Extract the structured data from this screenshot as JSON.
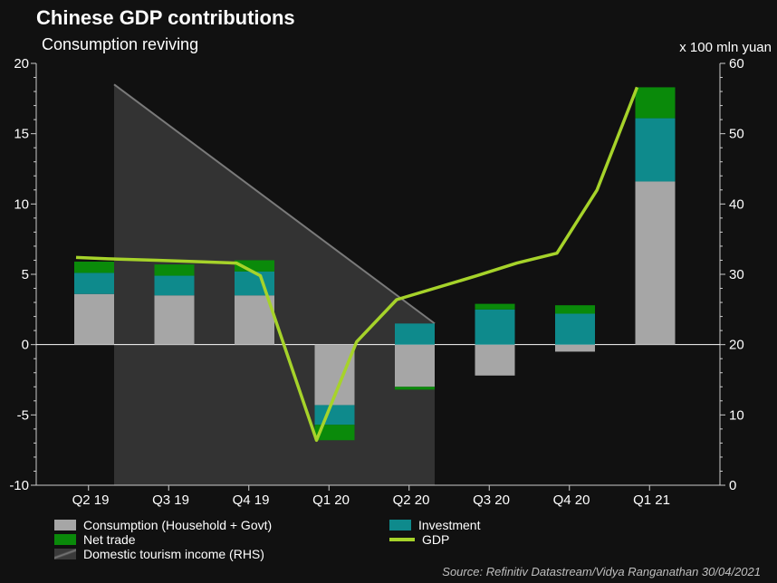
{
  "title": "Chinese GDP contributions",
  "subtitle": "Consumption reviving",
  "rhs_unit": "x 100 mln yuan",
  "source": "Source: Refinitiv Datastream/Vidya Ranganathan 30/04/2021",
  "colors": {
    "consumption": "#a6a6a6",
    "investment": "#0e8a8c",
    "net_trade": "#0a8a0a",
    "gdp": "#a6d32a",
    "tourism": "#3a3a3a",
    "tourism_line": "#7a7a7a"
  },
  "legend": [
    {
      "key": "consumption",
      "label": "Consumption (Household + Govt)"
    },
    {
      "key": "investment",
      "label": "Investment"
    },
    {
      "key": "net_trade",
      "label": "Net trade"
    },
    {
      "key": "gdp",
      "label": "GDP"
    },
    {
      "key": "tourism",
      "label": "Domestic tourism income (RHS)"
    }
  ],
  "chart_data": {
    "type": "bar",
    "categories": [
      "Q2 19",
      "Q3 19",
      "Q4 19",
      "Q1 20",
      "Q2 20",
      "Q3 20",
      "Q4 20",
      "Q1 21"
    ],
    "left_axis": {
      "min": -10,
      "max": 20,
      "ticks": [
        -10,
        -5,
        0,
        5,
        10,
        15,
        20
      ]
    },
    "right_axis": {
      "min": 0,
      "max": 60,
      "ticks": [
        0,
        10,
        20,
        30,
        40,
        50,
        60
      ]
    },
    "series": [
      {
        "name": "Consumption (Household + Govt)",
        "key": "consumption",
        "values": [
          3.6,
          3.5,
          3.5,
          -4.3,
          -3.0,
          -2.2,
          -0.5,
          11.6
        ]
      },
      {
        "name": "Investment",
        "key": "investment",
        "values": [
          1.5,
          1.4,
          1.7,
          -1.4,
          1.5,
          2.5,
          2.2,
          4.5
        ]
      },
      {
        "name": "Net trade",
        "key": "net_trade",
        "values": [
          0.8,
          0.8,
          0.8,
          -1.1,
          -0.2,
          0.4,
          0.6,
          2.2
        ]
      },
      {
        "name": "GDP",
        "key": "gdp",
        "type": "line",
        "x": [
          0.0,
          0.4,
          1.0,
          1.5,
          2.0,
          2.3,
          3.0,
          3.5,
          4.0,
          5.0,
          5.5,
          6.0,
          6.5,
          7.0
        ],
        "values": [
          6.2,
          6.1,
          6.0,
          5.9,
          5.8,
          4.9,
          -6.8,
          0.2,
          3.2,
          4.9,
          5.8,
          6.5,
          11.0,
          18.3
        ]
      },
      {
        "name": "Domestic tourism income (RHS)",
        "key": "tourism",
        "type": "area",
        "axis": "right",
        "x": [
          0,
          4.0
        ],
        "values": [
          57,
          23
        ]
      }
    ]
  }
}
